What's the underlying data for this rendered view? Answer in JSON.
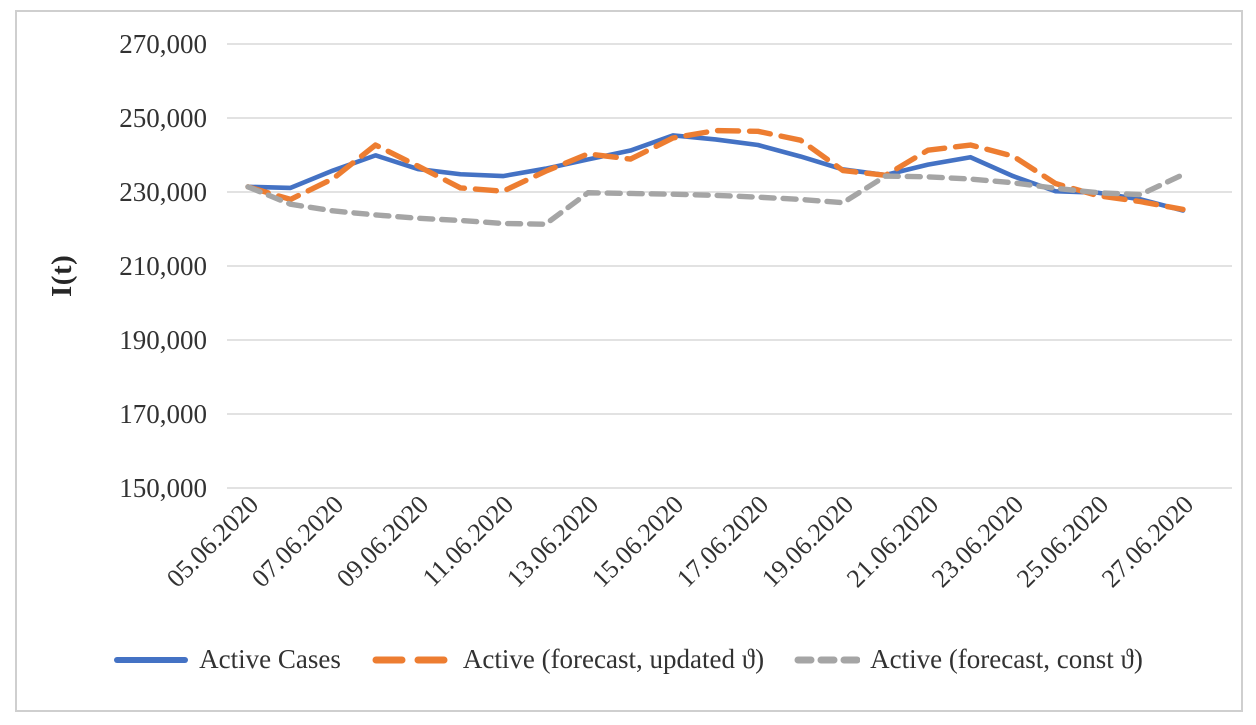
{
  "chart_data": {
    "type": "line",
    "title": "",
    "xlabel": "",
    "ylabel": "I(t)",
    "ylim": [
      150000,
      270000
    ],
    "ytick_labels": [
      "150,000",
      "170,000",
      "190,000",
      "210,000",
      "230,000",
      "250,000",
      "270,000"
    ],
    "grid": "horizontal-only",
    "legend_position": "bottom-center",
    "x_labels_rotation_deg": 45,
    "categories": [
      "05.06.2020",
      "06.06.2020",
      "07.06.2020",
      "08.06.2020",
      "09.06.2020",
      "10.06.2020",
      "11.06.2020",
      "12.06.2020",
      "13.06.2020",
      "14.06.2020",
      "15.06.2020",
      "16.06.2020",
      "17.06.2020",
      "18.06.2020",
      "19.06.2020",
      "20.06.2020",
      "21.06.2020",
      "22.06.2020",
      "23.06.2020",
      "24.06.2020",
      "25.06.2020",
      "26.06.2020",
      "27.06.2020"
    ],
    "visible_xtick_labels": [
      "05.06.2020",
      "07.06.2020",
      "09.06.2020",
      "11.06.2020",
      "13.06.2020",
      "15.06.2020",
      "17.06.2020",
      "19.06.2020",
      "21.06.2020",
      "23.06.2020",
      "25.06.2020",
      "27.06.2020"
    ],
    "visible_xtick_indices": [
      0,
      2,
      4,
      6,
      8,
      10,
      12,
      14,
      16,
      18,
      20,
      22
    ],
    "series": [
      {
        "id": "active-cases",
        "name": "Active Cases",
        "color": "#4472C4",
        "style": "solid",
        "dash_pattern": "none",
        "values": [
          231400,
          231100,
          235800,
          239900,
          236200,
          234800,
          234300,
          236300,
          238800,
          241200,
          245300,
          244200,
          242700,
          239600,
          236100,
          234600,
          237400,
          239400,
          234300,
          230200,
          229800,
          228000,
          225000
        ]
      },
      {
        "id": "active-forecast-updated-theta",
        "name": "Active (forecast, updated ϑ)",
        "color": "#ED7D31",
        "style": "dashed",
        "dash_pattern": "21 11",
        "values": [
          231400,
          228000,
          233600,
          242700,
          237000,
          231100,
          230200,
          235600,
          240300,
          238900,
          244600,
          246600,
          246400,
          244000,
          235800,
          234500,
          241300,
          242700,
          239700,
          232300,
          229000,
          227400,
          225300
        ]
      },
      {
        "id": "active-forecast-const-theta",
        "name": "Active (forecast, const ϑ)",
        "color": "#A5A5A5",
        "style": "dashed",
        "dash_pattern": "13 9",
        "values": [
          231400,
          226700,
          224900,
          223800,
          222900,
          222300,
          221500,
          221300,
          229800,
          229600,
          229400,
          229100,
          228600,
          228000,
          227100,
          234300,
          234100,
          233500,
          232500,
          231000,
          229800,
          229300,
          234700
        ]
      }
    ]
  }
}
